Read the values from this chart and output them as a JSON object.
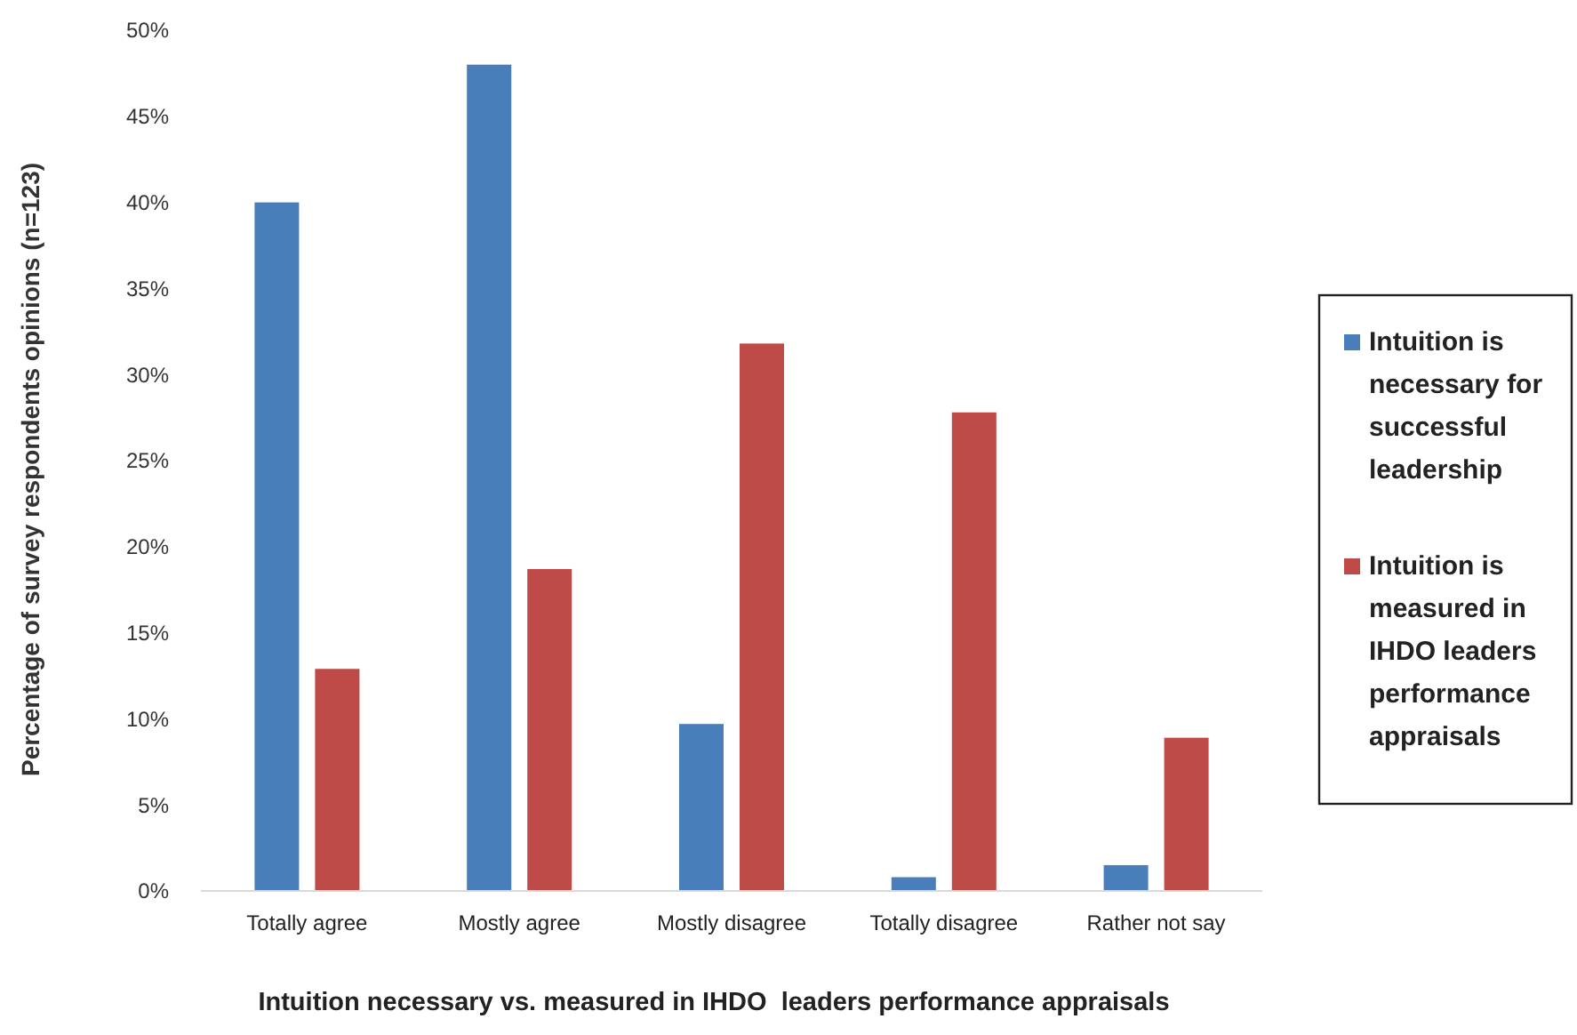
{
  "chart_data": {
    "type": "bar",
    "xlabel": "Intuition necessary vs. measured in IHDO  leaders performance appraisals",
    "ylabel": "Percentage of survey respondents opinions (n=123)",
    "categories": [
      "Totally agree",
      "Mostly agree",
      "Mostly disagree",
      "Totally disagree",
      "Rather not say"
    ],
    "series": [
      {
        "name": "Intuition is necessary for successful leadership",
        "color": "#4a7ebb",
        "values": [
          40,
          48,
          9.7,
          0.8,
          1.5
        ]
      },
      {
        "name": "Intuition is measured in IHDO leaders performance appraisals",
        "color": "#be4b48",
        "values": [
          12.9,
          18.7,
          31.8,
          27.8,
          8.9
        ]
      }
    ],
    "ylim": [
      0,
      50
    ],
    "yticks": [
      {
        "value": 0,
        "label": "0%"
      },
      {
        "value": 5,
        "label": "5%"
      },
      {
        "value": 10,
        "label": "10%"
      },
      {
        "value": 15,
        "label": "15%"
      },
      {
        "value": 20,
        "label": "20%"
      },
      {
        "value": 25,
        "label": "25%"
      },
      {
        "value": 30,
        "label": "30%"
      },
      {
        "value": 35,
        "label": "35%"
      },
      {
        "value": 40,
        "label": "40%"
      },
      {
        "value": 45,
        "label": "45%"
      },
      {
        "value": 50,
        "label": "50%"
      }
    ],
    "grid": false,
    "legend": "right"
  }
}
